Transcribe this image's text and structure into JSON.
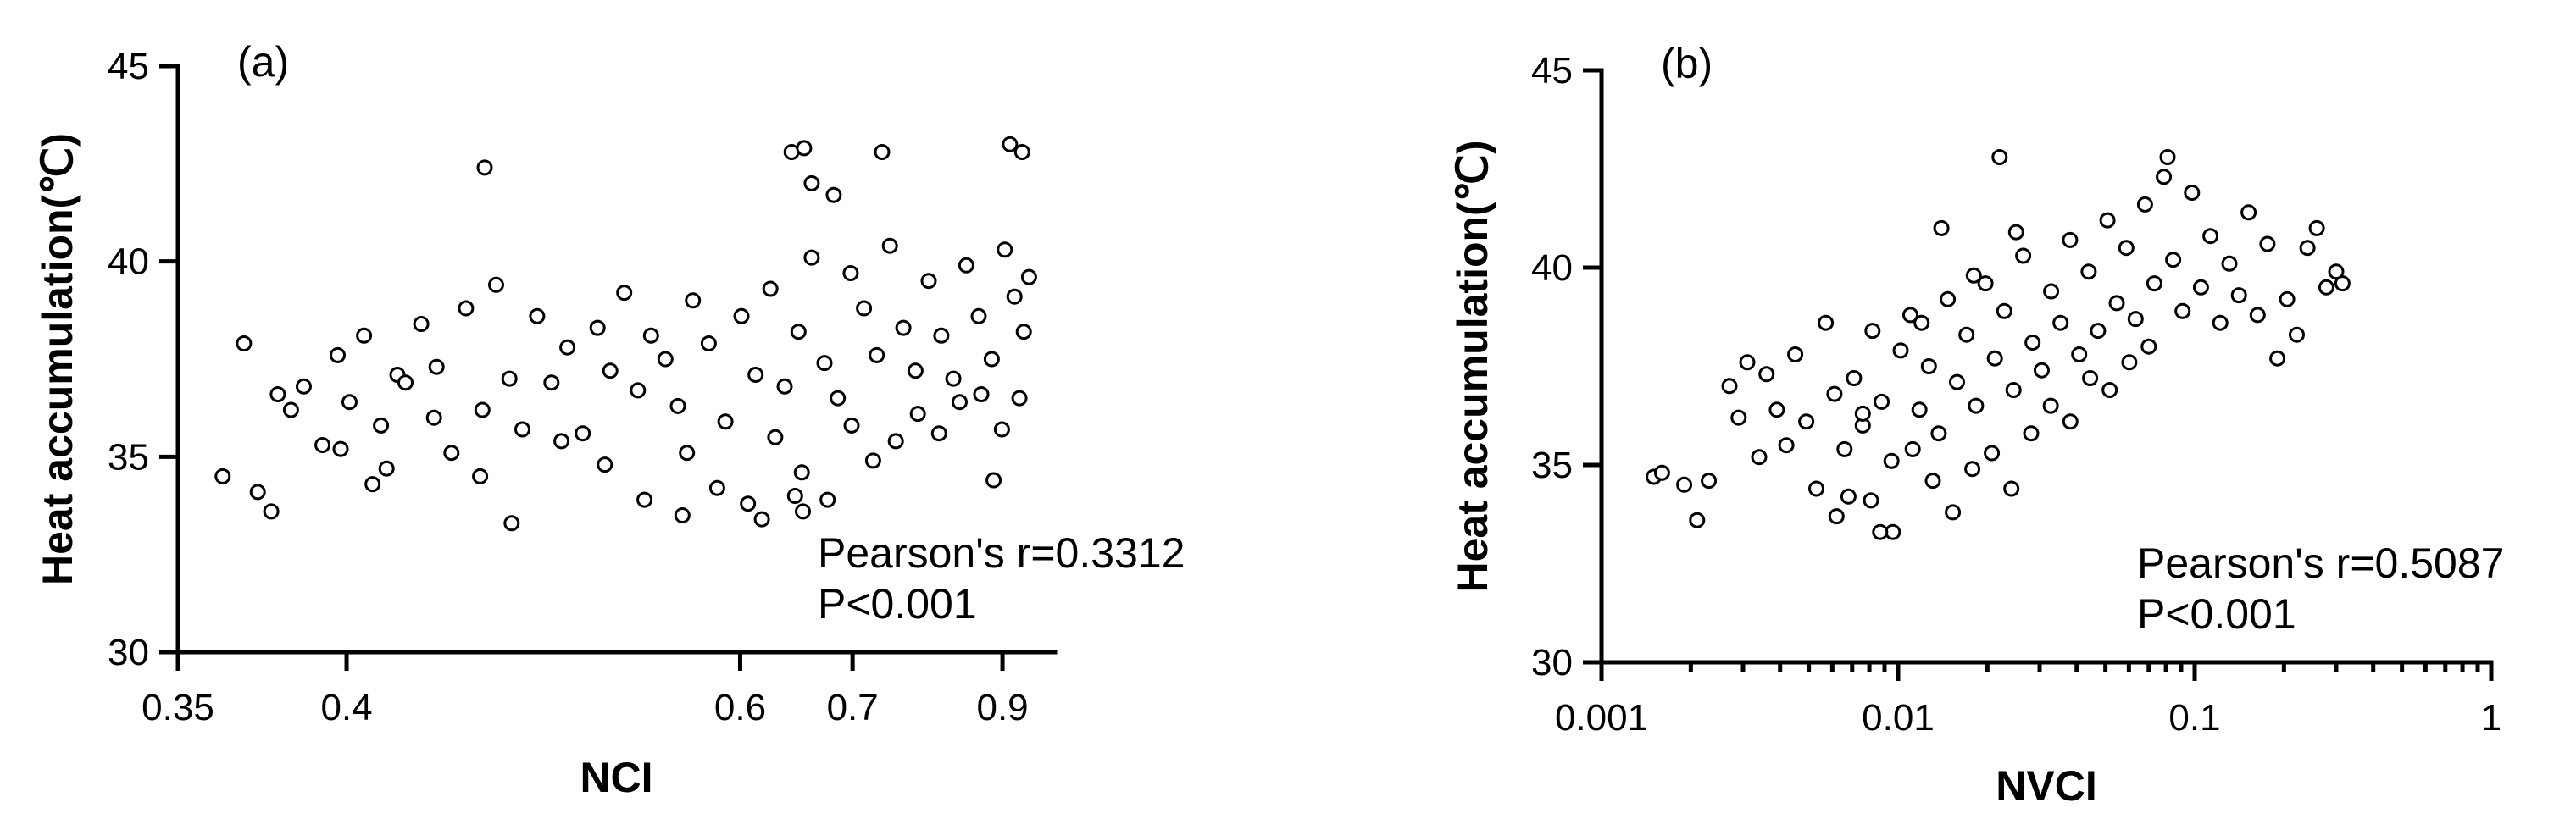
{
  "chart_data": [
    {
      "type": "scatter",
      "panel_label": "(a)",
      "xlabel": "NCI",
      "ylabel": "Heat accumulation(℃)",
      "x_scale": "reciprocal",
      "xlim": [
        0.35,
        1.0
      ],
      "x_ticks": [
        0.35,
        0.4,
        0.6,
        0.7,
        0.9
      ],
      "x_tick_labels": [
        "0.35",
        "0.4",
        "0.6",
        "0.7",
        "0.9"
      ],
      "ylim": [
        30,
        45
      ],
      "y_ticks": [
        30,
        35,
        40,
        45
      ],
      "y_tick_labels": [
        "30",
        "35",
        "40",
        "45"
      ],
      "marker": "open-circle",
      "grid": false,
      "legend": "none",
      "annotations": [
        "Pearson's r=0.3312",
        "P<0.001"
      ],
      "series": [
        {
          "x": [
            0.362,
            0.368,
            0.372,
            0.378,
            0.382,
            0.376,
            0.386,
            0.392,
            0.397,
            0.401,
            0.406,
            0.412,
            0.418,
            0.409,
            0.421,
            0.427,
            0.433,
            0.439,
            0.445,
            0.452,
            0.458,
            0.464,
            0.47,
            0.477,
            0.484,
            0.492,
            0.5,
            0.508,
            0.515,
            0.523,
            0.531,
            0.539,
            0.548,
            0.556,
            0.566,
            0.577,
            0.589,
            0.601,
            0.612,
            0.624,
            0.636,
            0.648,
            0.66,
            0.672,
            0.685,
            0.698,
            0.712,
            0.726,
            0.741,
            0.757,
            0.772,
            0.789,
            0.806,
            0.823,
            0.842,
            0.861,
            0.882,
            0.904,
            0.921,
            0.938,
            0.948,
            0.453,
            0.642,
            0.653,
            0.66,
            0.681,
            0.732,
            0.913,
            0.935,
            0.885,
            0.559,
            0.617,
            0.652,
            0.645,
            0.398,
            0.414,
            0.432,
            0.451,
            0.465,
            0.489,
            0.512,
            0.535,
            0.562,
            0.583,
            0.606,
            0.628,
            0.651,
            0.675,
            0.699,
            0.722,
            0.748,
            0.775,
            0.803,
            0.832,
            0.865,
            0.899,
            0.93
          ],
          "y": [
            34.5,
            37.9,
            34.1,
            36.6,
            36.2,
            33.6,
            36.8,
            35.3,
            37.6,
            36.4,
            38.1,
            35.8,
            37.1,
            34.3,
            36.9,
            38.4,
            37.3,
            35.1,
            38.8,
            36.2,
            39.4,
            37.0,
            35.7,
            38.6,
            36.9,
            37.8,
            35.6,
            38.3,
            37.2,
            39.2,
            36.7,
            38.1,
            37.5,
            36.3,
            39.0,
            37.9,
            35.9,
            38.6,
            37.1,
            39.3,
            36.8,
            38.2,
            40.1,
            37.4,
            36.5,
            39.7,
            38.8,
            37.6,
            40.4,
            38.3,
            37.2,
            39.5,
            38.1,
            37.0,
            39.9,
            38.6,
            37.5,
            40.3,
            39.1,
            38.2,
            39.6,
            42.4,
            42.8,
            42.9,
            42.0,
            41.7,
            42.8,
            43.0,
            42.8,
            34.4,
            33.5,
            33.4,
            33.6,
            34.0,
            35.2,
            34.7,
            36.0,
            34.5,
            33.3,
            35.4,
            34.8,
            33.9,
            35.1,
            34.2,
            33.8,
            35.5,
            34.6,
            33.9,
            35.8,
            34.9,
            35.4,
            36.1,
            35.6,
            36.4,
            36.6,
            35.7,
            36.5
          ]
        }
      ]
    },
    {
      "type": "scatter",
      "panel_label": "(b)",
      "xlabel": "NVCI",
      "ylabel": "Heat accumulation(℃)",
      "x_scale": "log",
      "xlim": [
        0.001,
        1
      ],
      "x_ticks": [
        0.001,
        0.01,
        0.1,
        1
      ],
      "x_tick_labels": [
        "0.001",
        "0.01",
        "0.1",
        "1"
      ],
      "ylim": [
        30,
        45
      ],
      "y_ticks": [
        30,
        35,
        40,
        45
      ],
      "y_tick_labels": [
        "30",
        "35",
        "40",
        "45"
      ],
      "marker": "open-circle",
      "grid": false,
      "legend": "none",
      "annotations": [
        "Pearson's r=0.5087",
        "P<0.001"
      ],
      "series": [
        {
          "x": [
            0.0015,
            0.0016,
            0.0019,
            0.0021,
            0.0023,
            0.0027,
            0.0029,
            0.0031,
            0.0034,
            0.0036,
            0.0039,
            0.0042,
            0.0045,
            0.0049,
            0.0053,
            0.0057,
            0.0061,
            0.0066,
            0.0071,
            0.0076,
            0.0082,
            0.0088,
            0.0095,
            0.0102,
            0.011,
            0.0118,
            0.0127,
            0.0137,
            0.0147,
            0.0158,
            0.017,
            0.0183,
            0.0197,
            0.0212,
            0.0228,
            0.0245,
            0.0264,
            0.0284,
            0.0305,
            0.0328,
            0.0353,
            0.038,
            0.0408,
            0.0439,
            0.0472,
            0.0508,
            0.0546,
            0.0588,
            0.0632,
            0.068,
            0.0731,
            0.0787,
            0.0846,
            0.091,
            0.0979,
            0.105,
            0.113,
            0.122,
            0.131,
            0.141,
            0.152,
            0.163,
            0.176,
            0.19,
            0.205,
            0.221,
            0.24,
            0.258,
            0.278,
            0.3,
            0.315,
            0.0062,
            0.0068,
            0.0081,
            0.0096,
            0.0112,
            0.0131,
            0.0153,
            0.0178,
            0.0207,
            0.0241,
            0.0281,
            0.0327,
            0.0381,
            0.0444,
            0.0517,
            0.0602,
            0.07,
            0.081,
            0.025,
            0.018,
            0.012,
            0.0087,
            0.0076,
            0.014,
            0.022
          ],
          "y": [
            34.7,
            34.8,
            34.5,
            33.6,
            34.6,
            37.0,
            36.2,
            37.6,
            35.2,
            37.3,
            36.4,
            35.5,
            37.8,
            36.1,
            34.4,
            38.6,
            36.8,
            35.4,
            37.2,
            36.0,
            38.4,
            36.6,
            35.1,
            37.9,
            38.8,
            36.4,
            37.5,
            35.8,
            39.2,
            37.1,
            38.3,
            36.5,
            39.6,
            37.7,
            38.9,
            36.9,
            40.3,
            38.1,
            37.4,
            39.4,
            38.6,
            40.7,
            37.8,
            39.9,
            38.4,
            41.2,
            39.1,
            40.5,
            38.7,
            41.6,
            39.6,
            42.3,
            40.2,
            38.9,
            41.9,
            39.5,
            40.8,
            38.6,
            40.1,
            39.3,
            41.4,
            38.8,
            40.6,
            37.7,
            39.2,
            38.3,
            40.5,
            41.0,
            39.5,
            39.9,
            39.6,
            33.7,
            34.2,
            34.1,
            33.3,
            35.4,
            34.6,
            33.8,
            34.9,
            35.3,
            34.4,
            35.8,
            36.5,
            36.1,
            37.2,
            36.9,
            37.6,
            38.0,
            42.8,
            40.9,
            39.8,
            38.6,
            33.3,
            36.3,
            41.0,
            42.8
          ]
        }
      ]
    }
  ]
}
